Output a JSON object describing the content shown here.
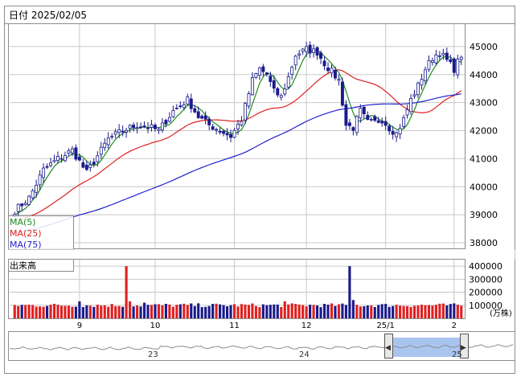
{
  "header": {
    "date_label": "日付 2025/02/05"
  },
  "legend": [
    {
      "label": "MA(5)",
      "color": "#1e8c1e"
    },
    {
      "label": "MA(25)",
      "color": "#e02020"
    },
    {
      "label": "MA(75)",
      "color": "#2020d0"
    }
  ],
  "volume_panel": {
    "title": "出来高",
    "unit": "(万株)"
  },
  "colors": {
    "candle_up": "#ffffff",
    "candle_down": "#1a1a8c",
    "candle_border": "#1a1a8c",
    "vol_up": "#e02020",
    "vol_down": "#1a1a8c",
    "grid": "#c8c8c8",
    "navigator_selection": "#aac4f0"
  },
  "chart_data": [
    {
      "type": "candlestick",
      "title": "",
      "x_ticks": [
        {
          "label": "9",
          "index": 18
        },
        {
          "label": "10",
          "index": 39
        },
        {
          "label": "11",
          "index": 61
        },
        {
          "label": "12",
          "index": 81
        },
        {
          "label": "25/1",
          "index": 103
        },
        {
          "label": "2",
          "index": 122
        }
      ],
      "ylim": [
        37800,
        45800
      ],
      "y_ticks": [
        38000,
        39000,
        40000,
        41000,
        42000,
        43000,
        44000,
        45000
      ],
      "grid": true,
      "anchors": [
        [
          0,
          39150
        ],
        [
          4,
          39600
        ],
        [
          8,
          40600
        ],
        [
          12,
          41000
        ],
        [
          16,
          41300
        ],
        [
          18,
          40900
        ],
        [
          20,
          40500
        ],
        [
          22,
          40900
        ],
        [
          26,
          41700
        ],
        [
          30,
          42000
        ],
        [
          34,
          42200
        ],
        [
          38,
          42100
        ],
        [
          40,
          42000
        ],
        [
          44,
          42700
        ],
        [
          48,
          43100
        ],
        [
          51,
          42500
        ],
        [
          54,
          42200
        ],
        [
          57,
          42000
        ],
        [
          60,
          41800
        ],
        [
          63,
          42400
        ],
        [
          66,
          43800
        ],
        [
          68,
          44200
        ],
        [
          70,
          44000
        ],
        [
          72,
          43400
        ],
        [
          74,
          43200
        ],
        [
          76,
          43900
        ],
        [
          78,
          44700
        ],
        [
          81,
          44900
        ],
        [
          84,
          44800
        ],
        [
          86,
          44400
        ],
        [
          88,
          44100
        ],
        [
          90,
          43800
        ],
        [
          92,
          42200
        ],
        [
          94,
          42100
        ],
        [
          96,
          42700
        ],
        [
          98,
          42300
        ],
        [
          100,
          42300
        ],
        [
          102,
          42400
        ],
        [
          104,
          42100
        ],
        [
          106,
          41900
        ],
        [
          108,
          42400
        ],
        [
          110,
          43100
        ],
        [
          112,
          43600
        ],
        [
          114,
          44200
        ],
        [
          116,
          44600
        ],
        [
          118,
          44800
        ],
        [
          120,
          44500
        ],
        [
          122,
          44200
        ],
        [
          124,
          44700
        ]
      ],
      "series": [
        {
          "name": "MA(5)",
          "window": 5,
          "color": "#1e8c1e"
        },
        {
          "name": "MA(25)",
          "window": 25,
          "color": "#e02020"
        },
        {
          "name": "MA(75)",
          "window": 75,
          "color": "#2020d0"
        }
      ]
    },
    {
      "type": "bar",
      "title": "出来高",
      "unit": "万株",
      "ylim": [
        0,
        450000
      ],
      "y_ticks": [
        100000,
        200000,
        300000,
        400000
      ],
      "typical_volume": 100000,
      "spikes": [
        {
          "index": 31,
          "value": 400000
        },
        {
          "index": 93,
          "value": 400000
        },
        {
          "index": 18,
          "value": 130000
        },
        {
          "index": 32,
          "value": 130000
        },
        {
          "index": 36,
          "value": 120000
        },
        {
          "index": 75,
          "value": 130000
        },
        {
          "index": 94,
          "value": 140000
        }
      ]
    }
  ],
  "navigator": {
    "labels": [
      {
        "label": "23"
      },
      {
        "label": "24"
      },
      {
        "label": "25"
      }
    ],
    "left_handle_symbol": "◀",
    "right_handle_symbol": "▶"
  }
}
